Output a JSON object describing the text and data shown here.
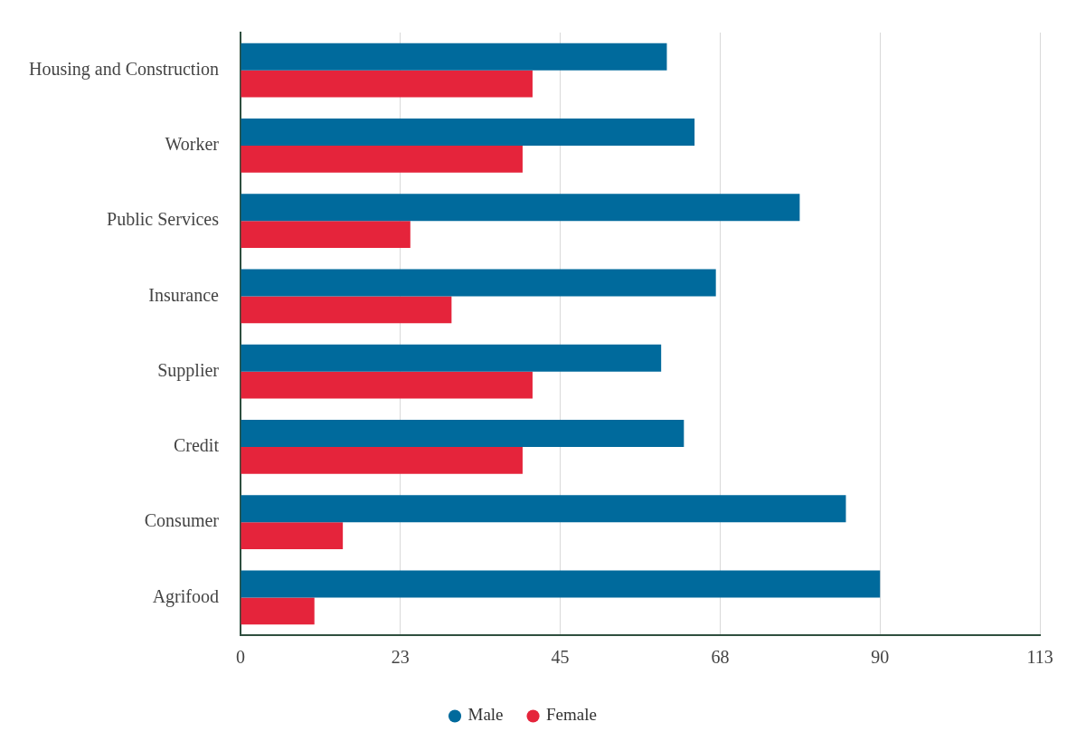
{
  "chart_data": {
    "type": "bar",
    "orientation": "horizontal",
    "categories": [
      "Housing and Construction",
      "Worker",
      "Public Services",
      "Insurance",
      "Supplier",
      "Credit",
      "Consumer",
      "Agrifood"
    ],
    "series": [
      {
        "name": "Male",
        "color": "#006a9c",
        "values": [
          60.0,
          63.9,
          78.7,
          66.9,
          59.2,
          62.4,
          85.2,
          90.0
        ]
      },
      {
        "name": "Female",
        "color": "#e5243b",
        "values": [
          41.1,
          39.7,
          23.9,
          29.7,
          41.1,
          39.7,
          14.4,
          10.4
        ]
      }
    ],
    "xlim": [
      0,
      112.5
    ],
    "xticks": [
      0,
      {
        "value": 22.5,
        "label": "23"
      },
      45,
      {
        "value": 67.5,
        "label": "68"
      },
      90,
      {
        "value": 112.5,
        "label": "113"
      }
    ],
    "grid": "x",
    "legend": "bottom",
    "marker": "circle"
  }
}
